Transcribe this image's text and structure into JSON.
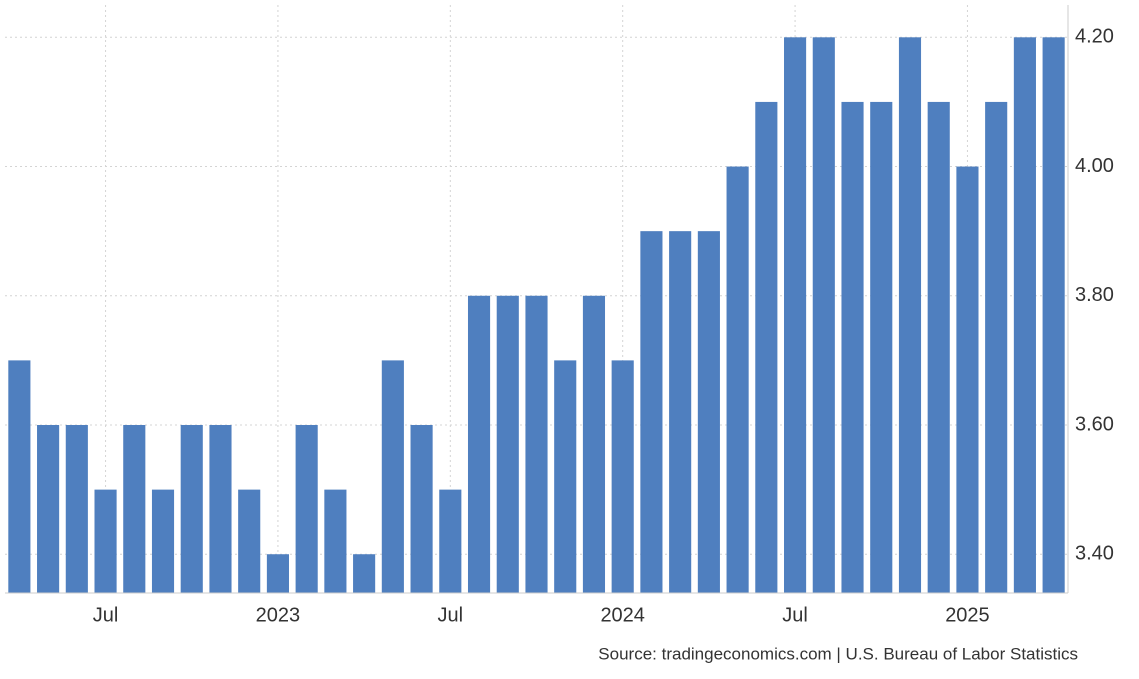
{
  "chart_data": {
    "type": "bar",
    "source": "Source: tradingeconomics.com | U.S. Bureau of Labor Statistics",
    "color": "#4f7fbf",
    "categories": [
      null,
      null,
      null,
      "Jul",
      null,
      null,
      null,
      null,
      null,
      "2023",
      null,
      null,
      null,
      null,
      null,
      "Jul",
      null,
      null,
      null,
      null,
      null,
      "2024",
      null,
      null,
      null,
      null,
      null,
      "Jul",
      null,
      null,
      null,
      null,
      null,
      "2025",
      null,
      null,
      null
    ],
    "values": [
      3.7,
      3.6,
      3.6,
      3.5,
      3.6,
      3.5,
      3.6,
      3.6,
      3.5,
      3.4,
      3.6,
      3.5,
      3.4,
      3.7,
      3.6,
      3.5,
      3.8,
      3.8,
      3.8,
      3.7,
      3.8,
      3.7,
      3.9,
      3.9,
      3.9,
      4.0,
      4.1,
      4.2,
      4.2,
      4.1,
      4.1,
      4.2,
      4.1,
      4.0,
      4.1,
      4.2,
      4.2
    ],
    "ylim": [
      3.34,
      4.25
    ],
    "yticks": [
      {
        "value": 3.4,
        "label": "3.40"
      },
      {
        "value": 3.6,
        "label": "3.60"
      },
      {
        "value": 3.8,
        "label": "3.80"
      },
      {
        "value": 4.0,
        "label": "4.00"
      },
      {
        "value": 4.2,
        "label": "4.20"
      }
    ],
    "grid": true
  }
}
